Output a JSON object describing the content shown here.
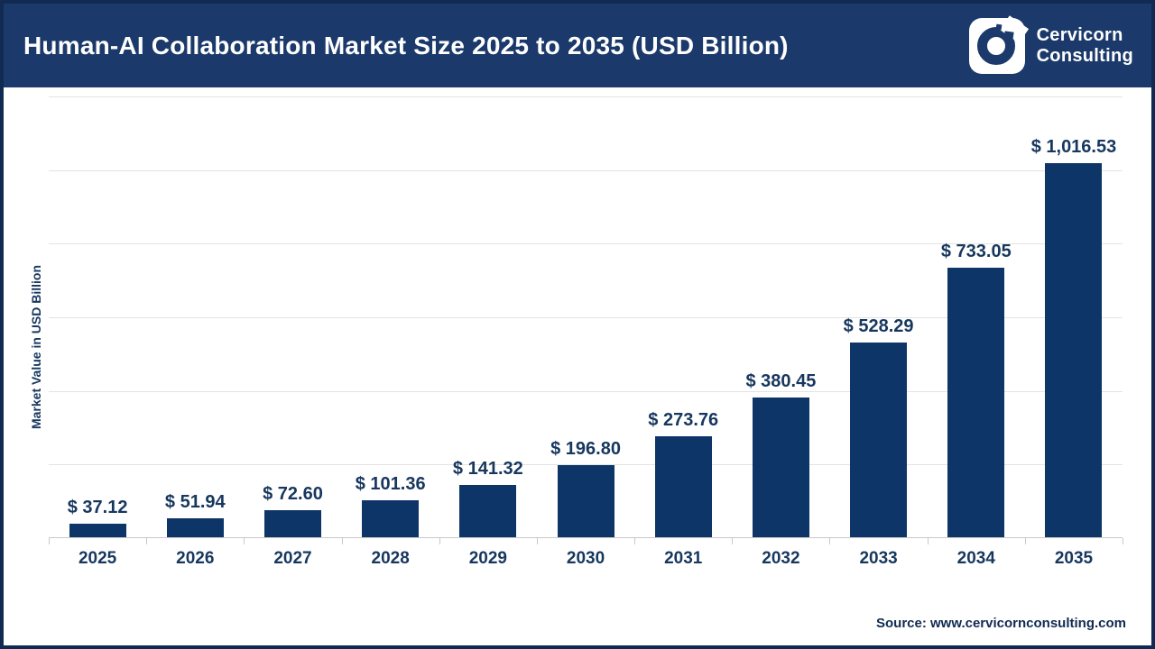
{
  "header": {
    "title": "Human-AI Collaboration Market Size 2025 to 2035 (USD Billion)",
    "logo": {
      "line1": "Cervicorn",
      "line2": "Consulting"
    }
  },
  "chart_data": {
    "type": "bar",
    "title": "Human-AI Collaboration Market Size 2025 to 2035 (USD Billion)",
    "categories": [
      "2025",
      "2026",
      "2027",
      "2028",
      "2029",
      "2030",
      "2031",
      "2032",
      "2033",
      "2034",
      "2035"
    ],
    "values": [
      37.12,
      51.94,
      72.6,
      101.36,
      141.32,
      196.8,
      273.76,
      380.45,
      528.29,
      733.05,
      1016.53
    ],
    "value_labels": [
      "$ 37.12",
      "$ 51.94",
      "$ 72.60",
      "$ 101.36",
      "$ 141.32",
      "$ 196.80",
      "$ 273.76",
      "$ 380.45",
      "$ 528.29",
      "$ 733.05",
      "$ 1,016.53"
    ],
    "xlabel": "",
    "ylabel": "Market Value in USD Billion",
    "ylim": [
      0,
      1200
    ],
    "gridline_step": 200,
    "grid": "horizontal",
    "legend": "none"
  },
  "footer": {
    "source": "Source: www.cervicornconsulting.com"
  },
  "colors": {
    "header_bg": "#1b3a6b",
    "page_border": "#112a52",
    "bar": "#0d3567",
    "label_text": "#17375e",
    "gridline": "#e3e3e3",
    "axis_line": "#c9c9c9"
  }
}
